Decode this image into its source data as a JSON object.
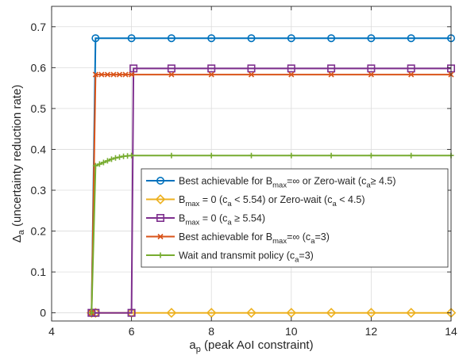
{
  "chart_data": {
    "type": "line",
    "xlabel": {
      "main": "a",
      "sub": "p",
      "rest": " (peak AoI constraint)"
    },
    "ylabel": {
      "main": "Δ",
      "sub": "a",
      "rest": " (uncertainty reduction rate)"
    },
    "xlim": [
      4,
      14
    ],
    "ylim": [
      -0.02,
      0.75
    ],
    "xticks": [
      4,
      6,
      8,
      10,
      12,
      14
    ],
    "yticks": [
      0,
      0.1,
      0.2,
      0.3,
      0.4,
      0.5,
      0.6,
      0.7
    ],
    "xtick_labels": [
      "4",
      "6",
      "8",
      "10",
      "12",
      "14"
    ],
    "ytick_labels": [
      "0",
      "0.1",
      "0.2",
      "0.3",
      "0.4",
      "0.5",
      "0.6",
      "0.7"
    ],
    "grid": true,
    "legend_position": "center-right",
    "series": [
      {
        "legend": [
          {
            "t": "Best achievable for B"
          },
          {
            "t": "max",
            "sub": true
          },
          {
            "t": "=∞ or Zero-wait (c"
          },
          {
            "t": "a",
            "sub": true
          },
          {
            "t": "≥ 4.5)"
          }
        ],
        "color": "#0072BD",
        "marker": "circle",
        "x": [
          5,
          5.1,
          6,
          7,
          8,
          9,
          10,
          11,
          12,
          13,
          14
        ],
        "y": [
          0,
          0.672,
          0.672,
          0.672,
          0.672,
          0.672,
          0.672,
          0.672,
          0.672,
          0.672,
          0.672
        ]
      },
      {
        "legend": [
          {
            "t": "B"
          },
          {
            "t": "max",
            "sub": true
          },
          {
            "t": " = 0 (c"
          },
          {
            "t": "a",
            "sub": true
          },
          {
            "t": " < 5.54) or Zero-wait (c"
          },
          {
            "t": "a",
            "sub": true
          },
          {
            "t": " < 4.5)"
          }
        ],
        "color": "#EDB120",
        "marker": "diamond",
        "x": [
          5,
          5.1,
          6,
          7,
          8,
          9,
          10,
          11,
          12,
          13,
          14
        ],
        "y": [
          0,
          0,
          0,
          0,
          0,
          0,
          0,
          0,
          0,
          0,
          0
        ]
      },
      {
        "legend": [
          {
            "t": "B"
          },
          {
            "t": "max",
            "sub": true
          },
          {
            "t": " = 0 (c"
          },
          {
            "t": "a",
            "sub": true
          },
          {
            "t": " ≥ 5.54)"
          }
        ],
        "color": "#7E2F8E",
        "marker": "square",
        "x": [
          5,
          5.1,
          6.0,
          6.05,
          7,
          8,
          9,
          10,
          11,
          12,
          13,
          14
        ],
        "y": [
          0,
          0,
          0,
          0.598,
          0.598,
          0.598,
          0.598,
          0.598,
          0.598,
          0.598,
          0.598,
          0.598
        ]
      },
      {
        "legend": [
          {
            "t": "Best achievable for B"
          },
          {
            "t": "max",
            "sub": true
          },
          {
            "t": "=∞ (c"
          },
          {
            "t": "a",
            "sub": true
          },
          {
            "t": "=3)"
          }
        ],
        "color": "#D95319",
        "marker": "x",
        "x": [
          5,
          5.1,
          5.25,
          5.4,
          5.55,
          5.7,
          5.85,
          6,
          7,
          8,
          9,
          10,
          11,
          12,
          13,
          14
        ],
        "y": [
          0,
          0.583,
          0.583,
          0.583,
          0.583,
          0.583,
          0.583,
          0.583,
          0.583,
          0.583,
          0.583,
          0.583,
          0.583,
          0.583,
          0.583,
          0.583
        ]
      },
      {
        "legend": [
          {
            "t": "Wait and transmit policy (c"
          },
          {
            "t": "a",
            "sub": true
          },
          {
            "t": "=3)"
          }
        ],
        "color": "#77AC30",
        "marker": "plus",
        "x": [
          5,
          5.1,
          5.2,
          5.3,
          5.4,
          5.5,
          5.6,
          5.7,
          5.8,
          5.9,
          6,
          7,
          8,
          9,
          10,
          11,
          12,
          13,
          14
        ],
        "y": [
          0,
          0.36,
          0.364,
          0.368,
          0.372,
          0.376,
          0.379,
          0.381,
          0.383,
          0.384,
          0.385,
          0.385,
          0.385,
          0.385,
          0.385,
          0.385,
          0.385,
          0.385,
          0.385
        ]
      }
    ]
  }
}
